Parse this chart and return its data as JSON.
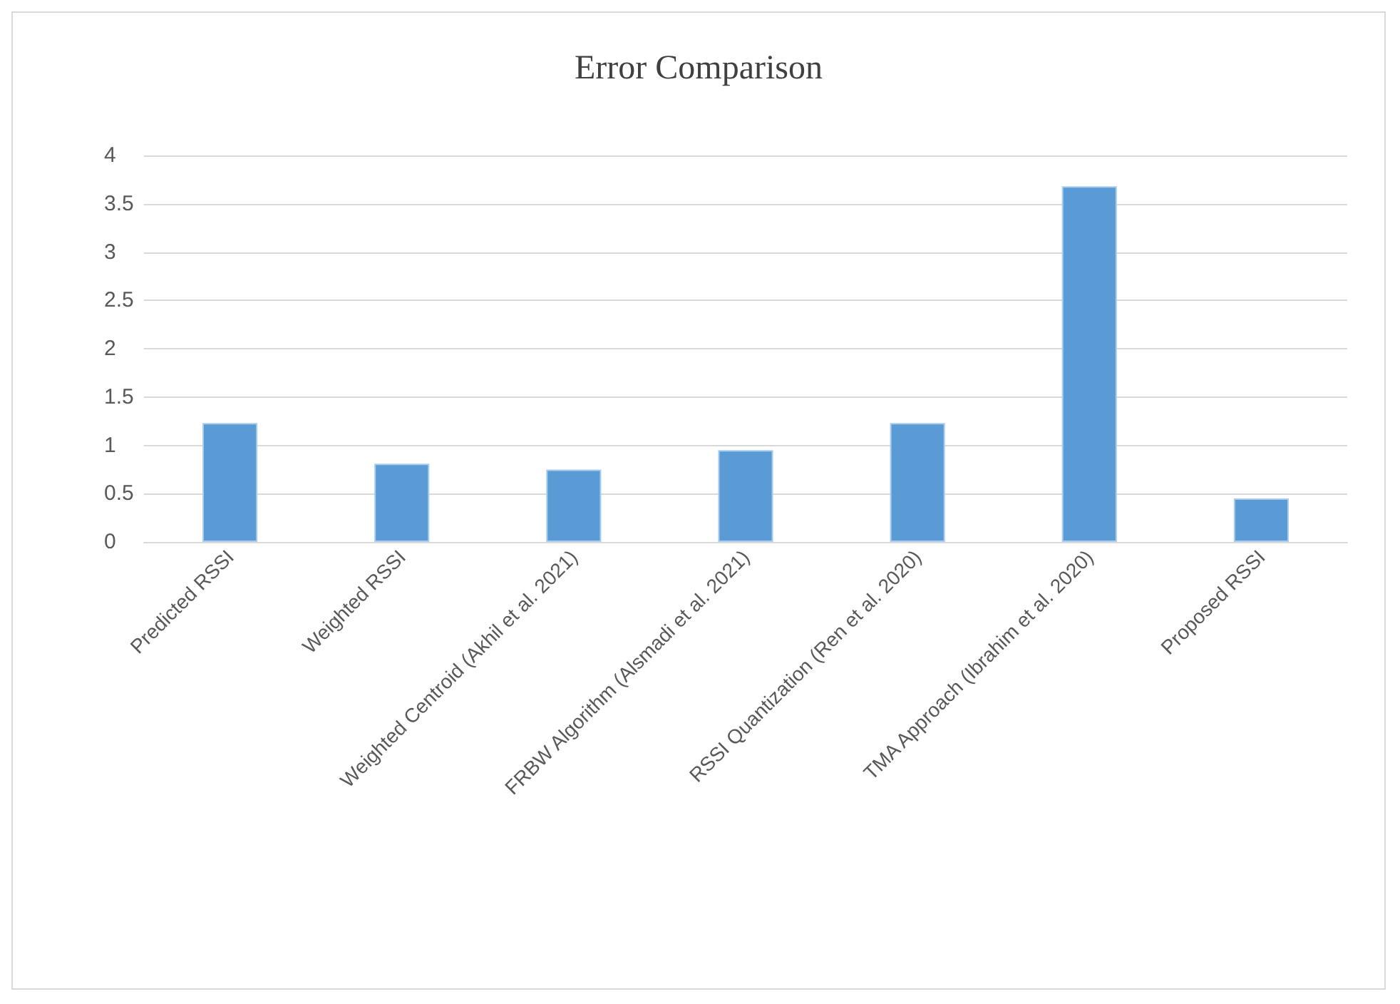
{
  "chart_data": {
    "type": "bar",
    "title": "Error Comparison",
    "categories": [
      "Predicted RSSI",
      "Weighted RSSI",
      "Weighted Centroid (Akhil et al. 2021)",
      "FRBW Algorithm (Alsmadi et al. 2021)",
      "RSSI Quantization (Ren et al. 2020)",
      "TMA Approach (Ibrahim et al. 2020)",
      "Proposed RSSI"
    ],
    "values": [
      1.23,
      0.81,
      0.75,
      0.95,
      1.23,
      3.68,
      0.45
    ],
    "color": "#5b9bd5",
    "ylim": [
      0,
      4
    ],
    "yticks": [
      0,
      0.5,
      1,
      1.5,
      2,
      2.5,
      3,
      3.5,
      4
    ],
    "grid": true
  }
}
